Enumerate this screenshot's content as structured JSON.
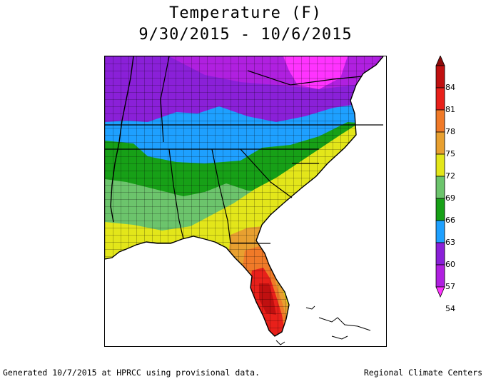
{
  "title": {
    "line1": "Temperature (F)",
    "line2": "9/30/2015 - 10/6/2015"
  },
  "legend": {
    "labels": [
      "84",
      "81",
      "78",
      "75",
      "72",
      "69",
      "66",
      "63",
      "60",
      "57",
      "54"
    ],
    "colors": {
      "below_54": "#ff33ff",
      "54_57": "#b020e0",
      "57_60": "#8a20d8",
      "60_63": "#1ea0ff",
      "63_66": "#17a017",
      "66_69": "#6cc46c",
      "69_72": "#e3e61a",
      "72_75": "#e8a030",
      "75_78": "#f07a28",
      "78_81": "#e8201a",
      "81_84": "#c01010",
      "above_84": "#8c0a0a"
    }
  },
  "footer": {
    "left": "Generated 10/7/2015 at HPRCC using provisional data.",
    "right": "Regional Climate Centers"
  }
}
